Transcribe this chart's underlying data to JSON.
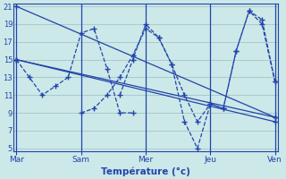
{
  "title": "Température (°c)",
  "bg_color": "#cce8e8",
  "line_color": "#2244aa",
  "y_min": 5,
  "y_max": 21,
  "y_ticks": [
    5,
    7,
    9,
    11,
    13,
    15,
    17,
    19,
    21
  ],
  "x_min": 0,
  "x_max": 20,
  "day_labels": [
    "Mar",
    "Sam",
    "Mer",
    "Jeu",
    "Ven"
  ],
  "day_positions": [
    0,
    5,
    10,
    15,
    20
  ],
  "lines": [
    {
      "x": [
        0,
        20
      ],
      "y": [
        21,
        8.5
      ],
      "solid": true
    },
    {
      "x": [
        0,
        20
      ],
      "y": [
        15,
        8.5
      ],
      "solid": true
    },
    {
      "x": [
        0,
        20
      ],
      "y": [
        15,
        8
      ],
      "solid": true
    },
    {
      "x": [
        0,
        1,
        2,
        3,
        4,
        5,
        6,
        7,
        8,
        9
      ],
      "y": [
        15,
        13,
        11,
        12,
        13,
        18,
        18.5,
        14,
        9,
        9
      ],
      "solid": false
    },
    {
      "x": [
        5,
        6,
        7,
        8,
        9,
        10,
        11,
        12,
        13,
        14,
        15,
        16,
        17,
        18,
        19,
        20
      ],
      "y": [
        9,
        9.5,
        11,
        13,
        15.5,
        18.5,
        17.5,
        14.5,
        8,
        5,
        10,
        9.5,
        16,
        20.5,
        19.5,
        12.5
      ],
      "solid": false
    },
    {
      "x": [
        8,
        9,
        10,
        11,
        12,
        13,
        14,
        15,
        16,
        17,
        18,
        19,
        20
      ],
      "y": [
        11,
        15,
        19,
        17.5,
        14.5,
        11,
        8,
        10,
        9.5,
        16,
        20.5,
        19,
        12.5
      ],
      "solid": false
    }
  ]
}
